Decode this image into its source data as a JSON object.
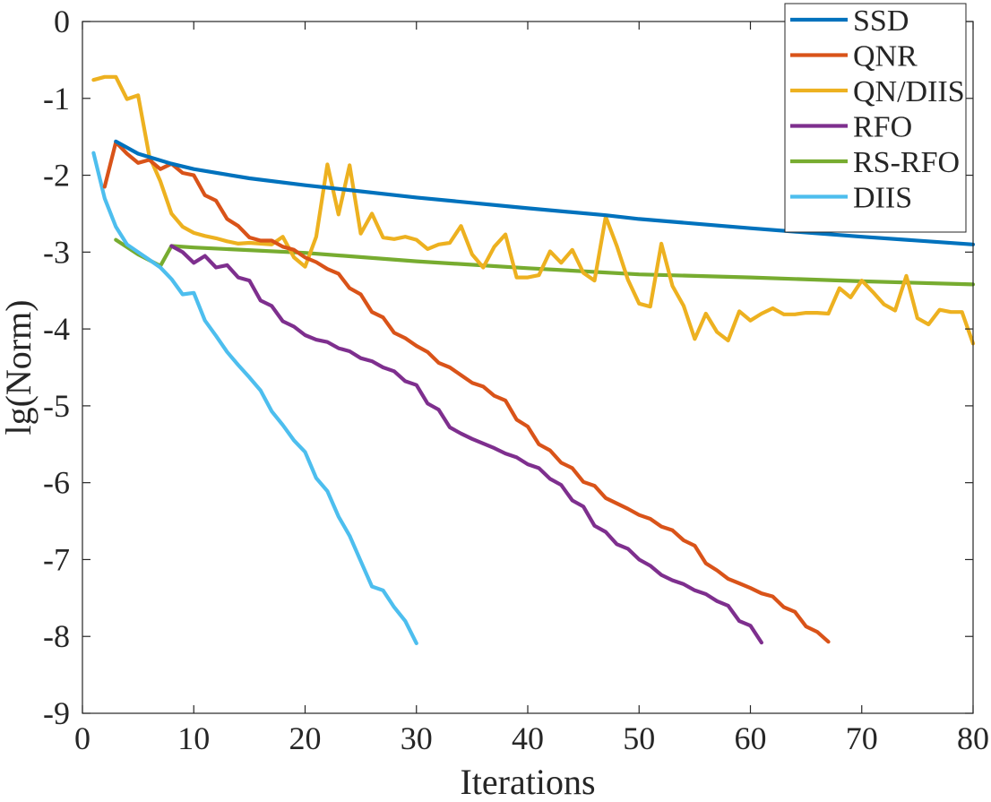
{
  "chart_data": {
    "type": "line",
    "title": "",
    "xlabel": "Iterations",
    "ylabel": "lg(Norm)",
    "xlim": [
      0,
      80
    ],
    "ylim": [
      -9,
      0
    ],
    "xticks": [
      0,
      10,
      20,
      30,
      40,
      50,
      60,
      70,
      80
    ],
    "xtick_labels": [
      "0",
      "10",
      "20",
      "30",
      "40",
      "50",
      "60",
      "70",
      "80"
    ],
    "yticks": [
      0,
      -1,
      -2,
      -3,
      -4,
      -5,
      -6,
      -7,
      -8,
      -9
    ],
    "ytick_labels": [
      "0",
      "-1",
      "-2",
      "-3",
      "-4",
      "-5",
      "-6",
      "-7",
      "-8",
      "-9"
    ],
    "grid": false,
    "legend_position": "top-right",
    "series": [
      {
        "name": "SSD",
        "color": "#0072BD",
        "points": [
          [
            3,
            -1.56
          ],
          [
            5,
            -1.72
          ],
          [
            8,
            -1.85
          ],
          [
            10,
            -1.92
          ],
          [
            15,
            -2.04
          ],
          [
            20,
            -2.13
          ],
          [
            30,
            -2.29
          ],
          [
            40,
            -2.43
          ],
          [
            47,
            -2.52
          ],
          [
            50,
            -2.57
          ],
          [
            60,
            -2.69
          ],
          [
            70,
            -2.8
          ],
          [
            80,
            -2.9
          ]
        ]
      },
      {
        "name": "QNR",
        "color": "#D95319",
        "points": [
          [
            2,
            -2.15
          ],
          [
            3,
            -1.57
          ],
          [
            4,
            -1.72
          ],
          [
            5,
            -1.84
          ],
          [
            6,
            -1.8
          ],
          [
            7,
            -1.92
          ],
          [
            8,
            -1.85
          ],
          [
            9,
            -1.97
          ],
          [
            10,
            -2.0
          ],
          [
            11,
            -2.26
          ],
          [
            12,
            -2.33
          ],
          [
            13,
            -2.57
          ],
          [
            14,
            -2.66
          ],
          [
            15,
            -2.81
          ],
          [
            16,
            -2.85
          ],
          [
            17,
            -2.85
          ],
          [
            18,
            -2.93
          ],
          [
            19,
            -2.97
          ],
          [
            20,
            -3.07
          ],
          [
            21,
            -3.13
          ],
          [
            22,
            -3.22
          ],
          [
            23,
            -3.28
          ],
          [
            24,
            -3.47
          ],
          [
            25,
            -3.55
          ],
          [
            26,
            -3.78
          ],
          [
            27,
            -3.85
          ],
          [
            28,
            -4.05
          ],
          [
            29,
            -4.12
          ],
          [
            30,
            -4.22
          ],
          [
            31,
            -4.3
          ],
          [
            32,
            -4.44
          ],
          [
            33,
            -4.5
          ],
          [
            34,
            -4.6
          ],
          [
            35,
            -4.7
          ],
          [
            36,
            -4.75
          ],
          [
            37,
            -4.87
          ],
          [
            38,
            -4.93
          ],
          [
            39,
            -5.18
          ],
          [
            40,
            -5.27
          ],
          [
            41,
            -5.5
          ],
          [
            42,
            -5.58
          ],
          [
            43,
            -5.74
          ],
          [
            44,
            -5.81
          ],
          [
            45,
            -5.99
          ],
          [
            46,
            -6.04
          ],
          [
            47,
            -6.2
          ],
          [
            48,
            -6.27
          ],
          [
            49,
            -6.34
          ],
          [
            50,
            -6.42
          ],
          [
            51,
            -6.47
          ],
          [
            52,
            -6.57
          ],
          [
            53,
            -6.62
          ],
          [
            54,
            -6.75
          ],
          [
            55,
            -6.82
          ],
          [
            56,
            -7.05
          ],
          [
            57,
            -7.14
          ],
          [
            58,
            -7.25
          ],
          [
            59,
            -7.31
          ],
          [
            60,
            -7.37
          ],
          [
            61,
            -7.44
          ],
          [
            62,
            -7.48
          ],
          [
            63,
            -7.62
          ],
          [
            64,
            -7.68
          ],
          [
            65,
            -7.87
          ],
          [
            66,
            -7.94
          ],
          [
            67,
            -8.07
          ]
        ]
      },
      {
        "name": "QN/DIIS",
        "color": "#EDB120",
        "points": [
          [
            1,
            -0.76
          ],
          [
            2,
            -0.72
          ],
          [
            3,
            -0.72
          ],
          [
            4,
            -1.01
          ],
          [
            5,
            -0.96
          ],
          [
            6,
            -1.75
          ],
          [
            7,
            -2.08
          ],
          [
            8,
            -2.5
          ],
          [
            9,
            -2.67
          ],
          [
            10,
            -2.75
          ],
          [
            11,
            -2.79
          ],
          [
            12,
            -2.82
          ],
          [
            13,
            -2.86
          ],
          [
            14,
            -2.89
          ],
          [
            15,
            -2.88
          ],
          [
            16,
            -2.89
          ],
          [
            17,
            -2.9
          ],
          [
            18,
            -2.8
          ],
          [
            19,
            -3.07
          ],
          [
            20,
            -3.19
          ],
          [
            21,
            -2.8
          ],
          [
            22,
            -1.86
          ],
          [
            23,
            -2.51
          ],
          [
            24,
            -1.87
          ],
          [
            25,
            -2.76
          ],
          [
            26,
            -2.5
          ],
          [
            27,
            -2.81
          ],
          [
            28,
            -2.83
          ],
          [
            29,
            -2.8
          ],
          [
            30,
            -2.84
          ],
          [
            31,
            -2.96
          ],
          [
            32,
            -2.9
          ],
          [
            33,
            -2.88
          ],
          [
            34,
            -2.66
          ],
          [
            35,
            -3.03
          ],
          [
            36,
            -3.2
          ],
          [
            37,
            -2.93
          ],
          [
            38,
            -2.77
          ],
          [
            39,
            -3.33
          ],
          [
            40,
            -3.33
          ],
          [
            41,
            -3.3
          ],
          [
            42,
            -2.99
          ],
          [
            43,
            -3.14
          ],
          [
            44,
            -2.97
          ],
          [
            45,
            -3.27
          ],
          [
            46,
            -3.37
          ],
          [
            47,
            -2.54
          ],
          [
            48,
            -2.92
          ],
          [
            49,
            -3.36
          ],
          [
            50,
            -3.67
          ],
          [
            51,
            -3.71
          ],
          [
            52,
            -2.89
          ],
          [
            53,
            -3.44
          ],
          [
            54,
            -3.7
          ],
          [
            55,
            -4.13
          ],
          [
            56,
            -3.8
          ],
          [
            57,
            -4.04
          ],
          [
            58,
            -4.15
          ],
          [
            59,
            -3.77
          ],
          [
            60,
            -3.89
          ],
          [
            61,
            -3.8
          ],
          [
            62,
            -3.73
          ],
          [
            63,
            -3.81
          ],
          [
            64,
            -3.81
          ],
          [
            65,
            -3.79
          ],
          [
            66,
            -3.79
          ],
          [
            67,
            -3.8
          ],
          [
            68,
            -3.47
          ],
          [
            69,
            -3.59
          ],
          [
            70,
            -3.37
          ],
          [
            71,
            -3.52
          ],
          [
            72,
            -3.68
          ],
          [
            73,
            -3.76
          ],
          [
            74,
            -3.31
          ],
          [
            75,
            -3.86
          ],
          [
            76,
            -3.94
          ],
          [
            77,
            -3.75
          ],
          [
            78,
            -3.78
          ],
          [
            79,
            -3.78
          ],
          [
            80,
            -4.19
          ]
        ]
      },
      {
        "name": "RFO",
        "color": "#7E2F8E",
        "points": [
          [
            8,
            -2.92
          ],
          [
            9,
            -3.0
          ],
          [
            10,
            -3.14
          ],
          [
            11,
            -3.05
          ],
          [
            12,
            -3.2
          ],
          [
            13,
            -3.17
          ],
          [
            14,
            -3.33
          ],
          [
            15,
            -3.37
          ],
          [
            16,
            -3.63
          ],
          [
            17,
            -3.7
          ],
          [
            18,
            -3.9
          ],
          [
            19,
            -3.97
          ],
          [
            20,
            -4.08
          ],
          [
            21,
            -4.14
          ],
          [
            22,
            -4.17
          ],
          [
            23,
            -4.25
          ],
          [
            24,
            -4.29
          ],
          [
            25,
            -4.38
          ],
          [
            26,
            -4.42
          ],
          [
            27,
            -4.5
          ],
          [
            28,
            -4.55
          ],
          [
            29,
            -4.68
          ],
          [
            30,
            -4.73
          ],
          [
            31,
            -4.97
          ],
          [
            32,
            -5.05
          ],
          [
            33,
            -5.28
          ],
          [
            34,
            -5.36
          ],
          [
            35,
            -5.43
          ],
          [
            36,
            -5.49
          ],
          [
            37,
            -5.55
          ],
          [
            38,
            -5.62
          ],
          [
            39,
            -5.67
          ],
          [
            40,
            -5.76
          ],
          [
            41,
            -5.81
          ],
          [
            42,
            -5.95
          ],
          [
            43,
            -6.03
          ],
          [
            44,
            -6.23
          ],
          [
            45,
            -6.31
          ],
          [
            46,
            -6.56
          ],
          [
            47,
            -6.64
          ],
          [
            48,
            -6.8
          ],
          [
            49,
            -6.86
          ],
          [
            50,
            -7.0
          ],
          [
            51,
            -7.08
          ],
          [
            52,
            -7.2
          ],
          [
            53,
            -7.27
          ],
          [
            54,
            -7.32
          ],
          [
            55,
            -7.4
          ],
          [
            56,
            -7.45
          ],
          [
            57,
            -7.54
          ],
          [
            58,
            -7.6
          ],
          [
            59,
            -7.8
          ],
          [
            60,
            -7.86
          ],
          [
            61,
            -8.08
          ]
        ]
      },
      {
        "name": "RS-RFO",
        "color": "#77AC30",
        "points": [
          [
            3,
            -2.84
          ],
          [
            5,
            -3.03
          ],
          [
            7,
            -3.18
          ],
          [
            8,
            -2.92
          ],
          [
            10,
            -2.94
          ],
          [
            20,
            -3.01
          ],
          [
            30,
            -3.12
          ],
          [
            40,
            -3.21
          ],
          [
            50,
            -3.29
          ],
          [
            60,
            -3.33
          ],
          [
            70,
            -3.38
          ],
          [
            80,
            -3.42
          ]
        ]
      },
      {
        "name": "DIIS",
        "color": "#4DBEEE",
        "points": [
          [
            1,
            -1.71
          ],
          [
            2,
            -2.3
          ],
          [
            3,
            -2.67
          ],
          [
            4,
            -2.9
          ],
          [
            5,
            -3.0
          ],
          [
            6,
            -3.1
          ],
          [
            7,
            -3.2
          ],
          [
            8,
            -3.35
          ],
          [
            9,
            -3.55
          ],
          [
            10,
            -3.53
          ],
          [
            11,
            -3.89
          ],
          [
            12,
            -4.09
          ],
          [
            13,
            -4.3
          ],
          [
            14,
            -4.47
          ],
          [
            15,
            -4.63
          ],
          [
            16,
            -4.8
          ],
          [
            17,
            -5.07
          ],
          [
            18,
            -5.25
          ],
          [
            19,
            -5.45
          ],
          [
            20,
            -5.6
          ],
          [
            21,
            -5.94
          ],
          [
            22,
            -6.11
          ],
          [
            23,
            -6.44
          ],
          [
            24,
            -6.69
          ],
          [
            25,
            -7.02
          ],
          [
            26,
            -7.35
          ],
          [
            27,
            -7.4
          ],
          [
            28,
            -7.62
          ],
          [
            29,
            -7.8
          ],
          [
            30,
            -8.09
          ]
        ]
      }
    ]
  }
}
